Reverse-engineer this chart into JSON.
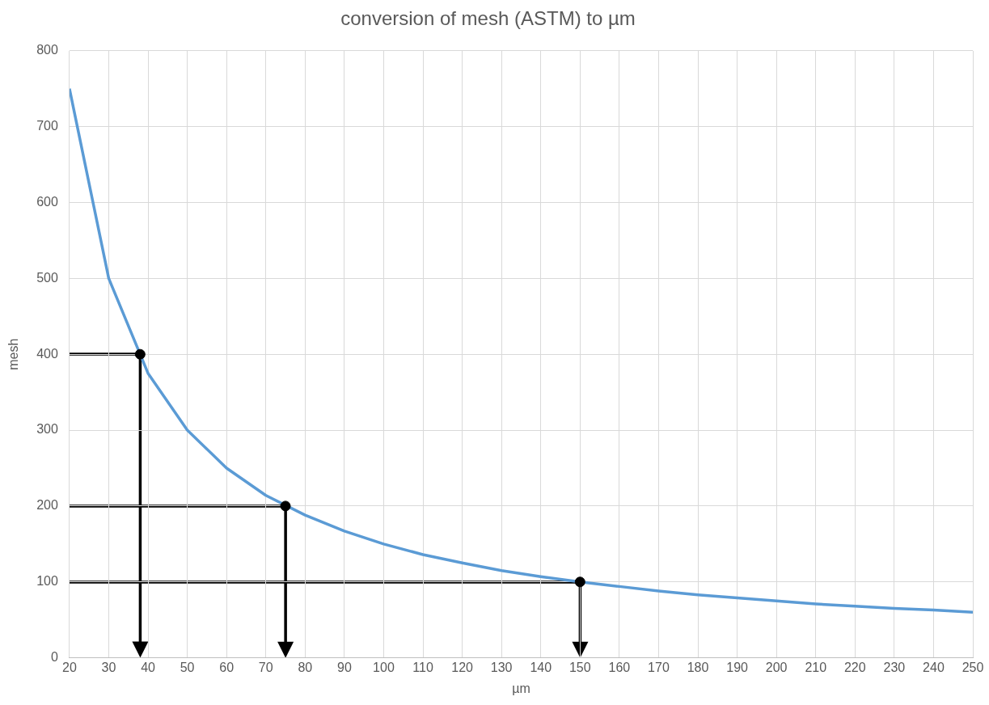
{
  "chart_data": {
    "type": "line",
    "title": "conversion of mesh (ASTM) to µm",
    "xlabel": "µm",
    "ylabel": "mesh",
    "x": [
      20,
      30,
      40,
      50,
      60,
      70,
      80,
      90,
      100,
      110,
      120,
      130,
      140,
      150,
      160,
      170,
      180,
      190,
      200,
      210,
      220,
      230,
      240,
      250
    ],
    "series": [
      {
        "color": "#5b9bd5",
        "marker": "none",
        "values": [
          750,
          500,
          375,
          300,
          250,
          214,
          188,
          167,
          150,
          136,
          125,
          115,
          107,
          100,
          94,
          88,
          83,
          79,
          75,
          71,
          68,
          65,
          63,
          60
        ]
      },
      {
        "type": "scatter",
        "color": "#000000",
        "marker": "circle",
        "x": [
          38,
          75,
          150
        ],
        "values": [
          400,
          200,
          100
        ]
      }
    ],
    "xlim": [
      20,
      250
    ],
    "xticks": [
      20,
      30,
      40,
      50,
      60,
      70,
      80,
      90,
      100,
      110,
      120,
      130,
      140,
      150,
      160,
      170,
      180,
      190,
      200,
      210,
      220,
      230,
      240,
      250
    ],
    "ylim": [
      0,
      800
    ],
    "yticks": [
      0,
      100,
      200,
      300,
      400,
      500,
      600,
      700,
      800
    ],
    "grid": true,
    "legend": false
  }
}
